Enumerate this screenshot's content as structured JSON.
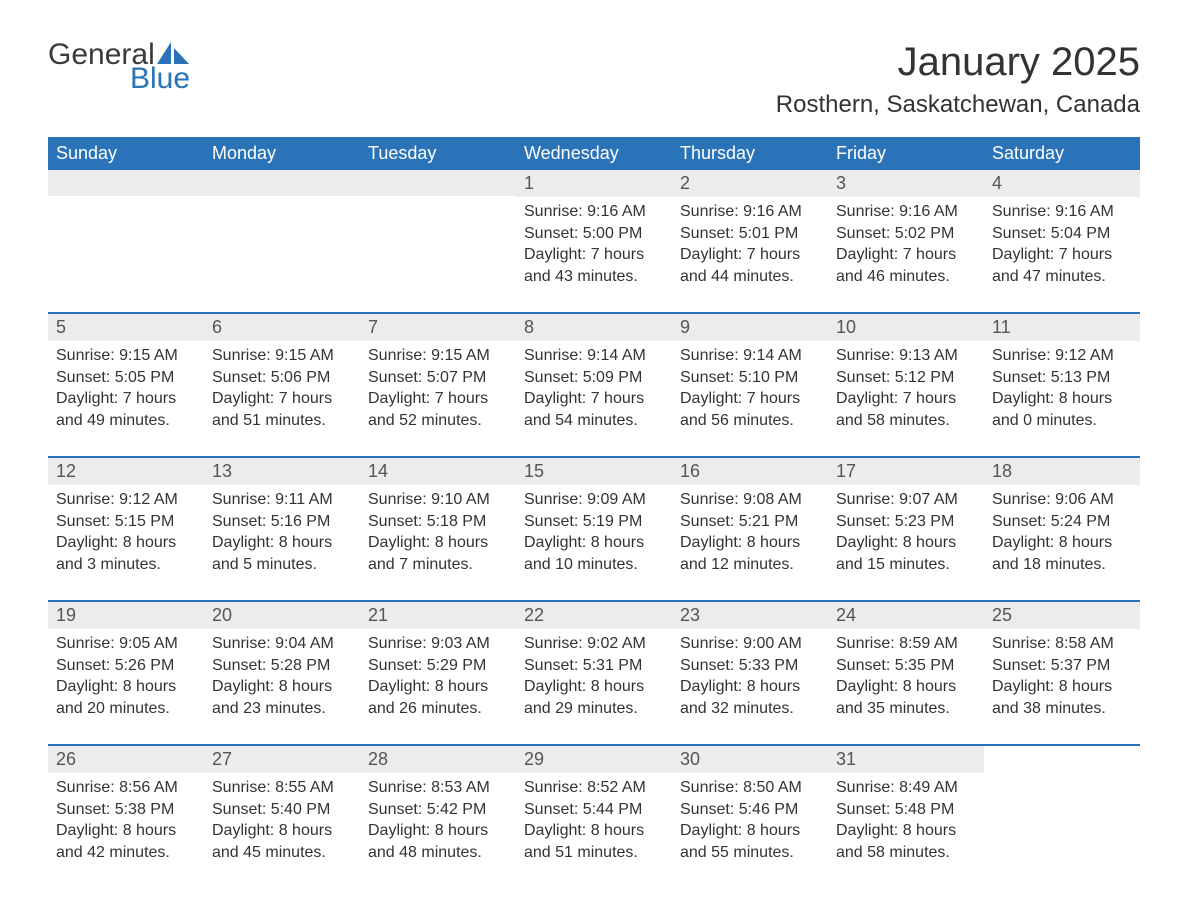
{
  "logo": {
    "general": "General",
    "blue": "Blue"
  },
  "title": "January 2025",
  "location": "Rosthern, Saskatchewan, Canada",
  "colors": {
    "header_bg": "#2a73b8",
    "header_text": "#ffffff",
    "daynum_bg": "#ececec",
    "body_text": "#333333",
    "row_border": "#2a73b8"
  },
  "weekdays": [
    "Sunday",
    "Monday",
    "Tuesday",
    "Wednesday",
    "Thursday",
    "Friday",
    "Saturday"
  ],
  "weeks": [
    [
      null,
      null,
      null,
      {
        "n": "1",
        "sr": "9:16 AM",
        "ss": "5:00 PM",
        "dl1": "7 hours",
        "dl2": "43 minutes."
      },
      {
        "n": "2",
        "sr": "9:16 AM",
        "ss": "5:01 PM",
        "dl1": "7 hours",
        "dl2": "44 minutes."
      },
      {
        "n": "3",
        "sr": "9:16 AM",
        "ss": "5:02 PM",
        "dl1": "7 hours",
        "dl2": "46 minutes."
      },
      {
        "n": "4",
        "sr": "9:16 AM",
        "ss": "5:04 PM",
        "dl1": "7 hours",
        "dl2": "47 minutes."
      }
    ],
    [
      {
        "n": "5",
        "sr": "9:15 AM",
        "ss": "5:05 PM",
        "dl1": "7 hours",
        "dl2": "49 minutes."
      },
      {
        "n": "6",
        "sr": "9:15 AM",
        "ss": "5:06 PM",
        "dl1": "7 hours",
        "dl2": "51 minutes."
      },
      {
        "n": "7",
        "sr": "9:15 AM",
        "ss": "5:07 PM",
        "dl1": "7 hours",
        "dl2": "52 minutes."
      },
      {
        "n": "8",
        "sr": "9:14 AM",
        "ss": "5:09 PM",
        "dl1": "7 hours",
        "dl2": "54 minutes."
      },
      {
        "n": "9",
        "sr": "9:14 AM",
        "ss": "5:10 PM",
        "dl1": "7 hours",
        "dl2": "56 minutes."
      },
      {
        "n": "10",
        "sr": "9:13 AM",
        "ss": "5:12 PM",
        "dl1": "7 hours",
        "dl2": "58 minutes."
      },
      {
        "n": "11",
        "sr": "9:12 AM",
        "ss": "5:13 PM",
        "dl1": "8 hours",
        "dl2": "0 minutes."
      }
    ],
    [
      {
        "n": "12",
        "sr": "9:12 AM",
        "ss": "5:15 PM",
        "dl1": "8 hours",
        "dl2": "3 minutes."
      },
      {
        "n": "13",
        "sr": "9:11 AM",
        "ss": "5:16 PM",
        "dl1": "8 hours",
        "dl2": "5 minutes."
      },
      {
        "n": "14",
        "sr": "9:10 AM",
        "ss": "5:18 PM",
        "dl1": "8 hours",
        "dl2": "7 minutes."
      },
      {
        "n": "15",
        "sr": "9:09 AM",
        "ss": "5:19 PM",
        "dl1": "8 hours",
        "dl2": "10 minutes."
      },
      {
        "n": "16",
        "sr": "9:08 AM",
        "ss": "5:21 PM",
        "dl1": "8 hours",
        "dl2": "12 minutes."
      },
      {
        "n": "17",
        "sr": "9:07 AM",
        "ss": "5:23 PM",
        "dl1": "8 hours",
        "dl2": "15 minutes."
      },
      {
        "n": "18",
        "sr": "9:06 AM",
        "ss": "5:24 PM",
        "dl1": "8 hours",
        "dl2": "18 minutes."
      }
    ],
    [
      {
        "n": "19",
        "sr": "9:05 AM",
        "ss": "5:26 PM",
        "dl1": "8 hours",
        "dl2": "20 minutes."
      },
      {
        "n": "20",
        "sr": "9:04 AM",
        "ss": "5:28 PM",
        "dl1": "8 hours",
        "dl2": "23 minutes."
      },
      {
        "n": "21",
        "sr": "9:03 AM",
        "ss": "5:29 PM",
        "dl1": "8 hours",
        "dl2": "26 minutes."
      },
      {
        "n": "22",
        "sr": "9:02 AM",
        "ss": "5:31 PM",
        "dl1": "8 hours",
        "dl2": "29 minutes."
      },
      {
        "n": "23",
        "sr": "9:00 AM",
        "ss": "5:33 PM",
        "dl1": "8 hours",
        "dl2": "32 minutes."
      },
      {
        "n": "24",
        "sr": "8:59 AM",
        "ss": "5:35 PM",
        "dl1": "8 hours",
        "dl2": "35 minutes."
      },
      {
        "n": "25",
        "sr": "8:58 AM",
        "ss": "5:37 PM",
        "dl1": "8 hours",
        "dl2": "38 minutes."
      }
    ],
    [
      {
        "n": "26",
        "sr": "8:56 AM",
        "ss": "5:38 PM",
        "dl1": "8 hours",
        "dl2": "42 minutes."
      },
      {
        "n": "27",
        "sr": "8:55 AM",
        "ss": "5:40 PM",
        "dl1": "8 hours",
        "dl2": "45 minutes."
      },
      {
        "n": "28",
        "sr": "8:53 AM",
        "ss": "5:42 PM",
        "dl1": "8 hours",
        "dl2": "48 minutes."
      },
      {
        "n": "29",
        "sr": "8:52 AM",
        "ss": "5:44 PM",
        "dl1": "8 hours",
        "dl2": "51 minutes."
      },
      {
        "n": "30",
        "sr": "8:50 AM",
        "ss": "5:46 PM",
        "dl1": "8 hours",
        "dl2": "55 minutes."
      },
      {
        "n": "31",
        "sr": "8:49 AM",
        "ss": "5:48 PM",
        "dl1": "8 hours",
        "dl2": "58 minutes."
      },
      null
    ]
  ],
  "labels": {
    "sunrise_prefix": "Sunrise: ",
    "sunset_prefix": "Sunset: ",
    "daylight_prefix": "Daylight: ",
    "and_prefix": "and "
  }
}
